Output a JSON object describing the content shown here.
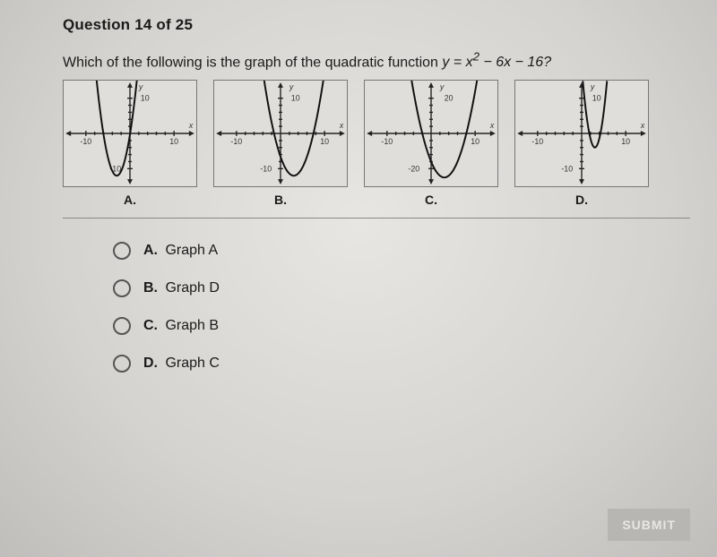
{
  "header": {
    "text": "Question 14 of 25"
  },
  "prompt": {
    "lead": "Which of the following is the graph of the quadratic function ",
    "equation_html": "y = x² − 6x − 16?"
  },
  "graphs": [
    {
      "label": "A.",
      "xlim": [
        -15,
        15
      ],
      "ylim": [
        -15,
        15
      ],
      "xticks": [
        -10,
        10
      ],
      "yticks": [
        -10,
        10
      ],
      "ytick_offset_x": 0,
      "parabola": {
        "vertex": [
          -3,
          -12
        ],
        "a": 1.3
      },
      "axis_labels": {
        "x": "x",
        "y": "y"
      },
      "colors": {
        "axis": "#222",
        "curve": "#111",
        "tick": "#333",
        "bg": "#e0dedb"
      }
    },
    {
      "label": "B.",
      "xlim": [
        -15,
        15
      ],
      "ylim": [
        -15,
        15
      ],
      "xticks": [
        -10,
        10
      ],
      "yticks": [
        -10,
        10
      ],
      "ytick_offset_x": 0,
      "parabola": {
        "vertex": [
          3,
          -12
        ],
        "a": 0.6
      },
      "axis_labels": {
        "x": "x",
        "y": "y"
      },
      "colors": {
        "axis": "#222",
        "curve": "#111",
        "tick": "#333",
        "bg": "#e0dedb"
      }
    },
    {
      "label": "C.",
      "xlim": [
        -15,
        15
      ],
      "ylim": [
        -30,
        30
      ],
      "xticks": [
        -10,
        10
      ],
      "yticks": [
        -20,
        20
      ],
      "ytick_offset_x": 3,
      "parabola": {
        "vertex": [
          3,
          -25
        ],
        "a": 1.0
      },
      "axis_labels": {
        "x": "x",
        "y": "y"
      },
      "colors": {
        "axis": "#222",
        "curve": "#111",
        "tick": "#333",
        "bg": "#e0dedb"
      }
    },
    {
      "label": "D.",
      "xlim": [
        -15,
        15
      ],
      "ylim": [
        -15,
        15
      ],
      "xticks": [
        -10,
        10
      ],
      "yticks": [
        -10,
        10
      ],
      "ytick_offset_x": 0,
      "parabola": {
        "vertex": [
          3,
          -4
        ],
        "a": 2.5
      },
      "axis_labels": {
        "x": "x",
        "y": "y"
      },
      "colors": {
        "axis": "#222",
        "curve": "#111",
        "tick": "#333",
        "bg": "#e0dedb"
      }
    }
  ],
  "options": [
    {
      "letter": "A.",
      "text": "Graph A"
    },
    {
      "letter": "B.",
      "text": "Graph D"
    },
    {
      "letter": "C.",
      "text": "Graph B"
    },
    {
      "letter": "D.",
      "text": "Graph C"
    }
  ],
  "submit": {
    "label": "SUBMIT"
  }
}
